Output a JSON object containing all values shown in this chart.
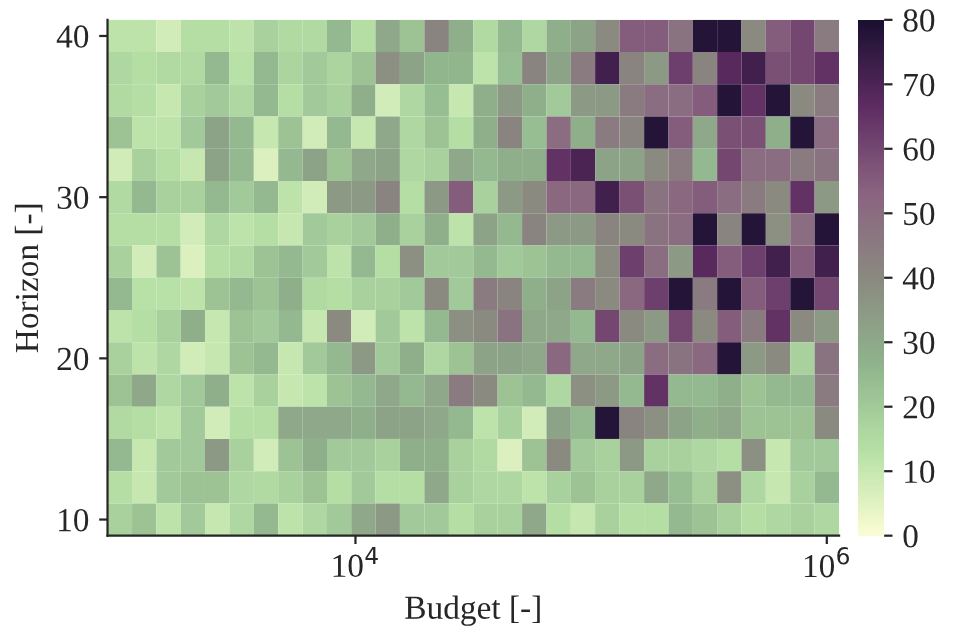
{
  "chart_data": {
    "type": "heatmap",
    "xlabel": "Budget [-]",
    "ylabel": "Horizon [-]",
    "log": "x",
    "xlim": [
      887,
      1127000
    ],
    "xticks": [
      {
        "value": 10000,
        "label": "10$^{4}$"
      },
      {
        "value": 1000000,
        "label": "10$^{6}$"
      }
    ],
    "ylim": [
      9,
      41
    ],
    "yticks": [
      10,
      20,
      30,
      40
    ],
    "clim": [
      0,
      80
    ],
    "cticks": [
      0,
      10,
      20,
      30,
      40,
      50,
      60,
      70,
      80
    ],
    "x": [
      1000,
      1270,
      1610,
      2040,
      2590,
      3290,
      4170,
      5300,
      6720,
      8530,
      10800,
      13700,
      17400,
      22100,
      28100,
      35600,
      45200,
      57400,
      72800,
      92400,
      117000,
      149000,
      189000,
      240000,
      304000,
      386000,
      489000,
      621000,
      788000,
      1000000
    ],
    "y": [
      40,
      38,
      36,
      34,
      32,
      30,
      28,
      26,
      24,
      22,
      20,
      18,
      16,
      14,
      12,
      10
    ],
    "cells": [
      [
        12,
        12,
        8,
        14,
        14,
        12,
        18,
        15,
        15,
        25,
        14,
        30,
        22,
        42,
        28,
        15,
        25,
        16,
        28,
        32,
        40,
        55,
        55,
        48,
        78,
        78,
        40,
        55,
        60,
        45
      ],
      [
        16,
        14,
        15,
        15,
        25,
        13,
        25,
        17,
        20,
        17,
        22,
        38,
        32,
        26,
        26,
        12,
        24,
        42,
        32,
        45,
        72,
        42,
        35,
        62,
        42,
        68,
        72,
        58,
        60,
        65
      ],
      [
        15,
        14,
        10,
        18,
        20,
        16,
        25,
        14,
        20,
        18,
        28,
        8,
        16,
        24,
        10,
        28,
        35,
        28,
        20,
        35,
        35,
        45,
        50,
        50,
        55,
        78,
        65,
        78,
        40,
        45
      ],
      [
        22,
        12,
        12,
        20,
        32,
        25,
        10,
        22,
        8,
        25,
        10,
        30,
        16,
        22,
        14,
        28,
        42,
        24,
        50,
        28,
        45,
        42,
        78,
        55,
        30,
        58,
        58,
        28,
        78,
        50
      ],
      [
        8,
        18,
        14,
        10,
        32,
        25,
        6,
        25,
        32,
        22,
        30,
        32,
        16,
        18,
        30,
        25,
        28,
        28,
        65,
        70,
        32,
        32,
        40,
        45,
        25,
        60,
        50,
        50,
        45,
        48
      ],
      [
        15,
        25,
        18,
        18,
        25,
        20,
        25,
        12,
        8,
        35,
        35,
        42,
        14,
        35,
        55,
        18,
        35,
        40,
        52,
        52,
        72,
        58,
        48,
        52,
        55,
        50,
        45,
        40,
        65,
        35
      ],
      [
        14,
        14,
        14,
        8,
        16,
        12,
        14,
        10,
        20,
        18,
        20,
        28,
        18,
        28,
        12,
        32,
        25,
        42,
        35,
        35,
        42,
        40,
        48,
        50,
        78,
        42,
        78,
        38,
        50,
        78
      ],
      [
        18,
        8,
        22,
        6,
        14,
        15,
        22,
        25,
        20,
        12,
        25,
        14,
        38,
        20,
        20,
        25,
        20,
        22,
        25,
        25,
        40,
        62,
        50,
        35,
        68,
        55,
        62,
        72,
        55,
        72
      ],
      [
        25,
        13,
        13,
        12,
        22,
        25,
        22,
        28,
        15,
        14,
        18,
        18,
        20,
        40,
        20,
        45,
        42,
        28,
        32,
        45,
        40,
        52,
        62,
        78,
        45,
        78,
        55,
        62,
        78,
        60
      ],
      [
        12,
        14,
        18,
        28,
        10,
        22,
        20,
        25,
        10,
        40,
        8,
        20,
        12,
        25,
        38,
        40,
        48,
        30,
        30,
        25,
        60,
        40,
        35,
        60,
        40,
        55,
        45,
        65,
        40,
        35
      ],
      [
        18,
        12,
        16,
        8,
        10,
        22,
        25,
        10,
        20,
        25,
        35,
        20,
        28,
        16,
        22,
        32,
        32,
        30,
        52,
        30,
        30,
        32,
        50,
        48,
        52,
        78,
        35,
        40,
        18,
        48
      ],
      [
        22,
        30,
        16,
        20,
        28,
        12,
        18,
        10,
        12,
        22,
        25,
        30,
        25,
        30,
        45,
        40,
        22,
        25,
        16,
        38,
        35,
        25,
        65,
        25,
        25,
        28,
        22,
        25,
        25,
        45
      ],
      [
        15,
        14,
        12,
        20,
        8,
        14,
        14,
        30,
        30,
        30,
        28,
        32,
        32,
        30,
        25,
        12,
        18,
        8,
        32,
        25,
        78,
        42,
        38,
        32,
        28,
        30,
        22,
        22,
        22,
        40
      ],
      [
        25,
        10,
        20,
        20,
        35,
        18,
        8,
        22,
        28,
        20,
        20,
        18,
        28,
        28,
        18,
        15,
        6,
        22,
        40,
        20,
        18,
        35,
        18,
        18,
        16,
        14,
        38,
        10,
        20,
        20
      ],
      [
        14,
        10,
        20,
        22,
        22,
        16,
        15,
        18,
        22,
        14,
        20,
        14,
        14,
        30,
        18,
        16,
        16,
        12,
        18,
        22,
        18,
        18,
        30,
        24,
        18,
        38,
        16,
        10,
        18,
        25
      ],
      [
        18,
        22,
        12,
        20,
        10,
        16,
        25,
        12,
        16,
        20,
        30,
        35,
        20,
        20,
        14,
        18,
        18,
        30,
        14,
        10,
        18,
        14,
        14,
        25,
        22,
        18,
        14,
        16,
        18,
        16
      ]
    ]
  }
}
